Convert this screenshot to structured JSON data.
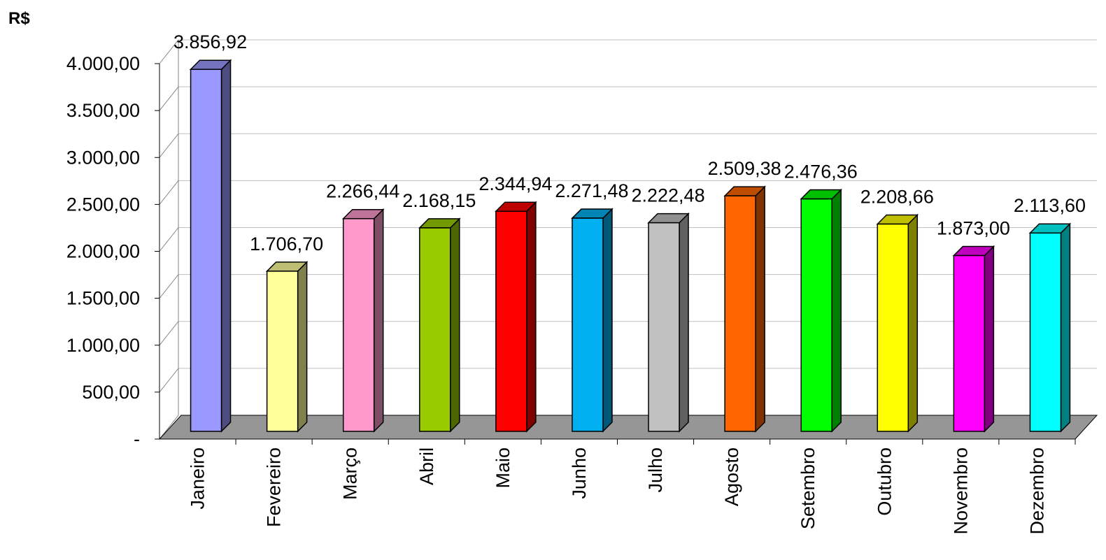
{
  "chart_data": {
    "type": "bar",
    "ylabel": "R$",
    "categories": [
      "Janeiro",
      "Fevereiro",
      "Março",
      "Abril",
      "Maio",
      "Junho",
      "Julho",
      "Agosto",
      "Setembro",
      "Outubro",
      "Novembro",
      "Dezembro"
    ],
    "values": [
      3856.92,
      1706.7,
      2266.44,
      2168.15,
      2344.94,
      2271.48,
      2222.48,
      2509.38,
      2476.36,
      2208.66,
      1873.0,
      2113.6
    ],
    "value_labels": [
      "3.856,92",
      "1.706,70",
      "2.266,44",
      "2.168,15",
      "2.344,94",
      "2.271,48",
      "2.222,48",
      "2.509,38",
      "2.476,36",
      "2.208,66",
      "1.873,00",
      "2.113,60"
    ],
    "colors": [
      "#9999ff",
      "#ffff99",
      "#ff99cc",
      "#99cc00",
      "#ff0000",
      "#00b0f0",
      "#c0c0c0",
      "#ff6600",
      "#00ff00",
      "#ffff00",
      "#ff00ff",
      "#00ffff"
    ],
    "y_ticks": [
      0,
      500,
      1000,
      1500,
      2000,
      2500,
      3000,
      3500,
      4000
    ],
    "y_tick_labels": [
      "-",
      "500,00",
      "1.000,00",
      "1.500,00",
      "2.000,00",
      "2.500,00",
      "3.000,00",
      "3.500,00",
      "4.000,00"
    ],
    "ylim": [
      0,
      4000
    ],
    "grid": true,
    "legend": "none"
  }
}
